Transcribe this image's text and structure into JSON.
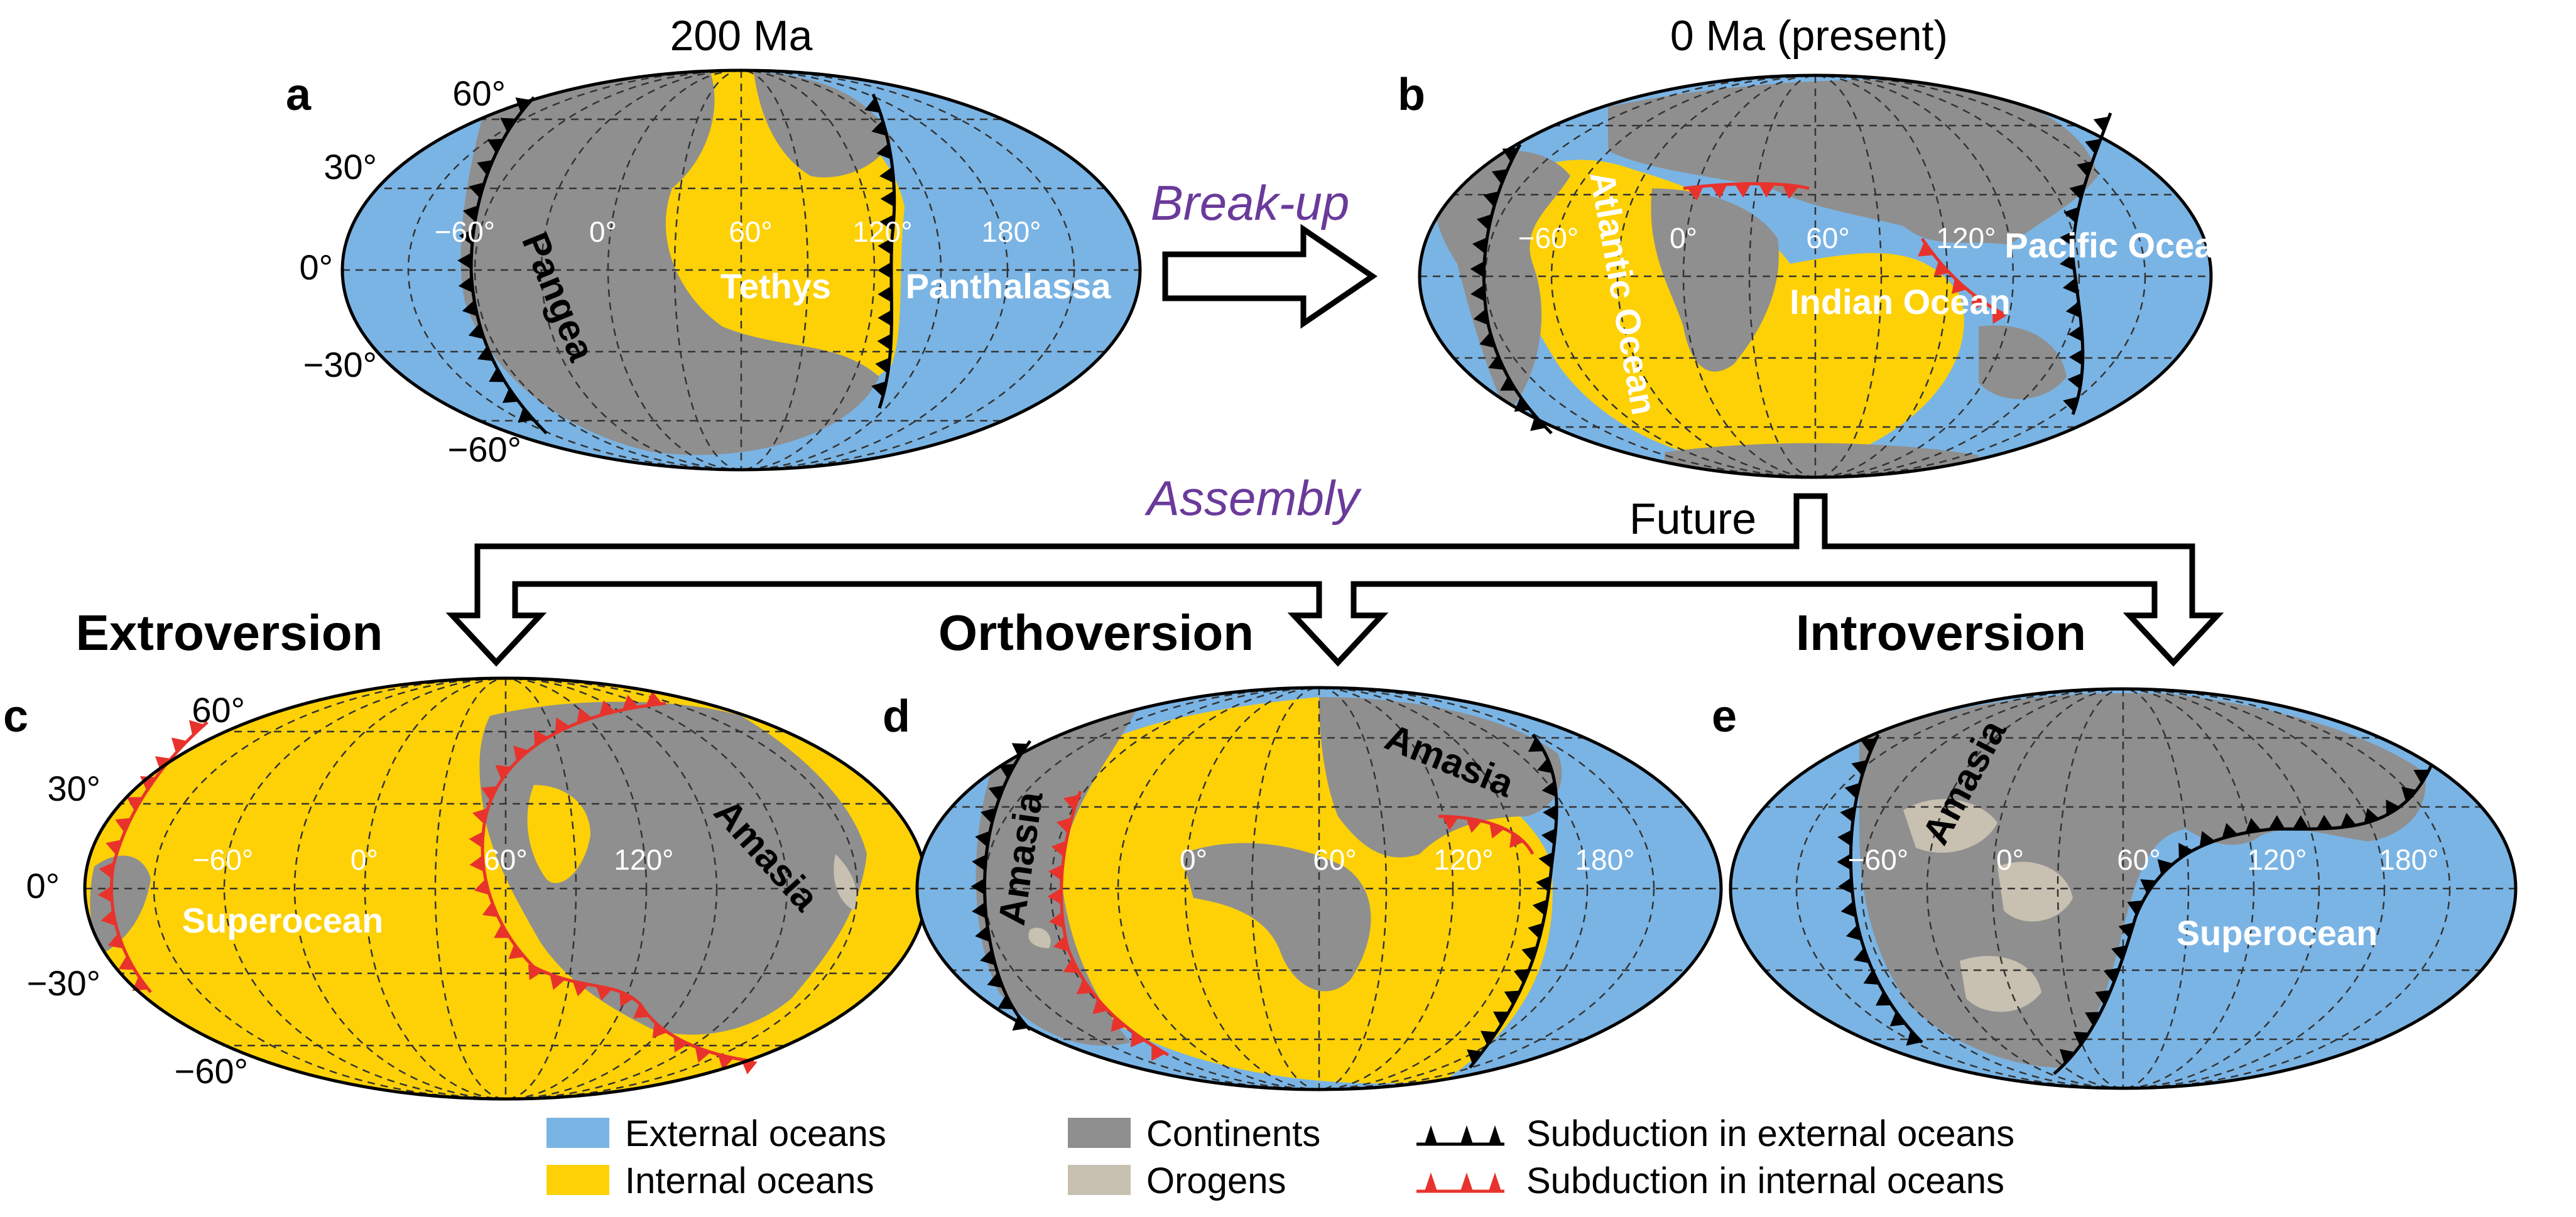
{
  "colors": {
    "external_oceans": "#7ab4e4",
    "internal_oceans": "#fdd106",
    "continents": "#8f8f8f",
    "orogens": "#c8c0b0",
    "subduction_external": "#000000",
    "subduction_internal": "#e8332c",
    "process_text": "#6a3a9a"
  },
  "panels": {
    "a": {
      "letter": "a",
      "time": "200 Ma",
      "lat_labels": [
        "60°",
        "30°",
        "0°",
        "−30°",
        "−60°"
      ],
      "lon_labels": [
        "−60°",
        "0°",
        "60°",
        "120°",
        "180°"
      ],
      "labels": {
        "continent": "Pangea",
        "ocean_inner": "Tethys",
        "ocean_outer": "Panthalassa"
      }
    },
    "b": {
      "letter": "b",
      "time": "0 Ma (present)",
      "lon_labels": [
        "−60°",
        "0°",
        "60°",
        "120°"
      ],
      "labels": {
        "atlantic": "Atlantic Ocean",
        "indian": "Indian Ocean",
        "pacific": "Pacific Ocean"
      }
    },
    "c": {
      "letter": "c",
      "scenario": "Extroversion",
      "lat_labels": [
        "60°",
        "30°",
        "0°",
        "−30°",
        "−60°"
      ],
      "lon_labels": [
        "−60°",
        "0°",
        "60°",
        "120°"
      ],
      "labels": {
        "ocean": "Superocean",
        "continent": "Amasia"
      }
    },
    "d": {
      "letter": "d",
      "scenario": "Orthoversion",
      "lon_labels": [
        "0°",
        "60°",
        "120°",
        "180°"
      ],
      "labels": {
        "continent_left": "Amasia",
        "continent_right": "Amasia"
      }
    },
    "e": {
      "letter": "e",
      "scenario": "Introversion",
      "lon_labels": [
        "−60°",
        "0°",
        "60°",
        "120°",
        "180°"
      ],
      "labels": {
        "continent": "Amasia",
        "ocean": "Superocean"
      }
    }
  },
  "arrows": {
    "breakup": "Break-up",
    "assembly": "Assembly",
    "future": "Future"
  },
  "legend": {
    "external_oceans": "External oceans",
    "internal_oceans": "Internal oceans",
    "continents": "Continents",
    "orogens": "Orogens",
    "subduction_external": "Subduction in external oceans",
    "subduction_internal": "Subduction in internal oceans"
  }
}
